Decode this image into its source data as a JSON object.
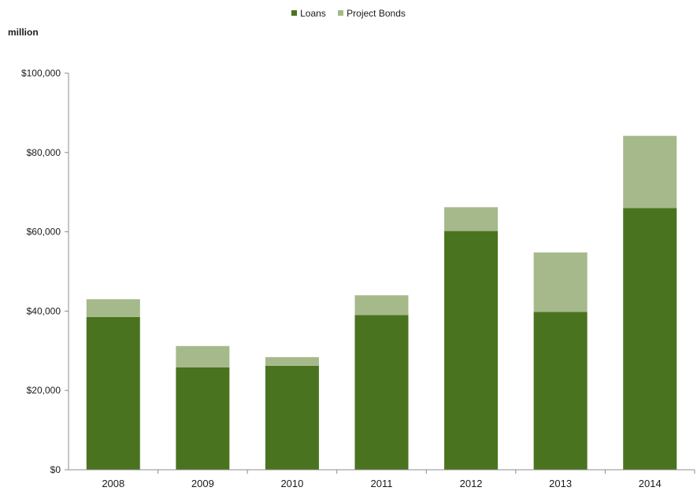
{
  "chart_data": {
    "type": "bar",
    "stacked": true,
    "unit_label": "million",
    "categories": [
      "2008",
      "2009",
      "2010",
      "2011",
      "2012",
      "2013",
      "2014"
    ],
    "series": [
      {
        "name": "Loans",
        "color": "#4a7320",
        "values": [
          38500,
          25800,
          26200,
          39000,
          60200,
          39800,
          66000
        ]
      },
      {
        "name": "Project Bonds",
        "color": "#a5b98a",
        "values": [
          4500,
          5400,
          2200,
          5000,
          6000,
          15000,
          18200
        ]
      }
    ],
    "ylim": [
      0,
      100000
    ],
    "yticks": [
      "$0",
      "$20,000",
      "$40,000",
      "$60,000",
      "$80,000",
      "$100,000"
    ],
    "ytick_values": [
      0,
      20000,
      40000,
      60000,
      80000,
      100000
    ],
    "legend_position": "top-center",
    "grid": false
  }
}
